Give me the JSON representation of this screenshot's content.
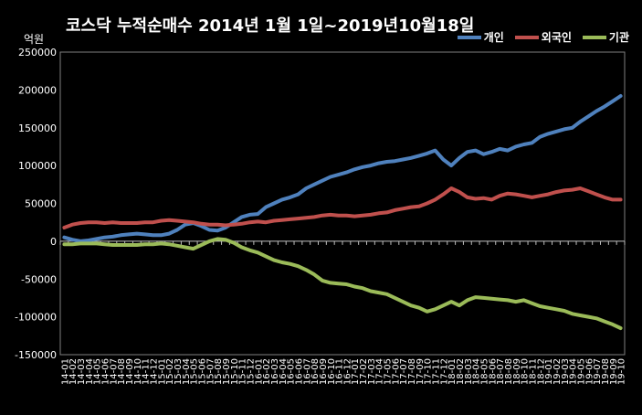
{
  "chart_data": {
    "type": "line",
    "title": "코스닥 누적순매수 2014년 1월 1일~2019년10월18일",
    "ylabel": "억원",
    "ylim": [
      -150000,
      250000
    ],
    "yticks": [
      250000,
      200000,
      150000,
      100000,
      50000,
      0,
      -50000,
      -100000,
      -150000
    ],
    "ytick_labels": [
      "250000",
      "200000",
      "150000",
      "100000",
      "50000",
      "0",
      "-50000",
      "-100000",
      "-150000"
    ],
    "categories": [
      "14-01",
      "14-02",
      "14-03",
      "14-04",
      "14-05",
      "14-06",
      "14-07",
      "14-08",
      "14-09",
      "14-10",
      "14-11",
      "14-12",
      "15-01",
      "15-02",
      "15-03",
      "15-04",
      "15-05",
      "15-06",
      "15-07",
      "15-08",
      "15-09",
      "15-10",
      "15-11",
      "15-12",
      "16-01",
      "16-02",
      "16-03",
      "16-04",
      "16-05",
      "16-06",
      "16-07",
      "16-08",
      "16-09",
      "16-10",
      "16-11",
      "16-12",
      "17-01",
      "17-02",
      "17-03",
      "17-04",
      "17-05",
      "17-06",
      "17-07",
      "17-08",
      "17-09",
      "17-10",
      "17-11",
      "17-12",
      "18-01",
      "18-02",
      "18-03",
      "18-04",
      "18-05",
      "18-06",
      "18-07",
      "18-08",
      "18-09",
      "18-10",
      "18-11",
      "18-12",
      "19-01",
      "19-02",
      "19-03",
      "19-04",
      "19-05",
      "19-06",
      "19-07",
      "19-08",
      "19-09",
      "19-10"
    ],
    "legend_position": "top-right",
    "grid": false,
    "series": [
      {
        "name": "개인",
        "color": "#4f81bd",
        "values": [
          5000,
          2000,
          0,
          1000,
          3000,
          5000,
          6000,
          8000,
          9000,
          10000,
          9000,
          8000,
          8000,
          10000,
          15000,
          22000,
          24000,
          20000,
          15000,
          14000,
          18000,
          25000,
          32000,
          35000,
          36000,
          45000,
          50000,
          55000,
          58000,
          62000,
          70000,
          75000,
          80000,
          85000,
          88000,
          91000,
          95000,
          98000,
          100000,
          103000,
          105000,
          106000,
          108000,
          110000,
          113000,
          116000,
          120000,
          108000,
          100000,
          110000,
          118000,
          120000,
          115000,
          118000,
          122000,
          120000,
          125000,
          128000,
          130000,
          138000,
          142000,
          145000,
          148000,
          150000,
          158000,
          165000,
          172000,
          178000,
          185000,
          192000
        ]
      },
      {
        "name": "외국인",
        "color": "#c0504d",
        "values": [
          18000,
          22000,
          24000,
          25000,
          25000,
          24000,
          25000,
          24000,
          24000,
          24000,
          25000,
          25000,
          27000,
          28000,
          27000,
          26000,
          25000,
          23000,
          22000,
          22000,
          21000,
          22000,
          23000,
          25000,
          26000,
          25000,
          27000,
          28000,
          29000,
          30000,
          31000,
          32000,
          34000,
          35000,
          34000,
          34000,
          33000,
          34000,
          35000,
          37000,
          38000,
          41000,
          43000,
          45000,
          46000,
          50000,
          55000,
          62000,
          70000,
          65000,
          58000,
          56000,
          57000,
          55000,
          60000,
          63000,
          62000,
          60000,
          58000,
          60000,
          62000,
          65000,
          67000,
          68000,
          70000,
          66000,
          62000,
          58000,
          55000,
          55000
        ]
      },
      {
        "name": "기관",
        "color": "#9bbb59",
        "values": [
          -4000,
          -4000,
          -3000,
          -3000,
          -3000,
          -4000,
          -5000,
          -5000,
          -5000,
          -5000,
          -4000,
          -4000,
          -3000,
          -4000,
          -6000,
          -8000,
          -10000,
          -5000,
          0,
          3000,
          2000,
          -2000,
          -8000,
          -12000,
          -15000,
          -20000,
          -25000,
          -28000,
          -30000,
          -33000,
          -38000,
          -44000,
          -52000,
          -55000,
          -56000,
          -57000,
          -60000,
          -62000,
          -66000,
          -68000,
          -70000,
          -75000,
          -80000,
          -85000,
          -88000,
          -93000,
          -90000,
          -85000,
          -80000,
          -85000,
          -78000,
          -74000,
          -75000,
          -76000,
          -77000,
          -78000,
          -80000,
          -78000,
          -82000,
          -86000,
          -88000,
          -90000,
          -92000,
          -96000,
          -98000,
          -100000,
          -102000,
          -106000,
          -110000,
          -115000
        ]
      }
    ]
  }
}
